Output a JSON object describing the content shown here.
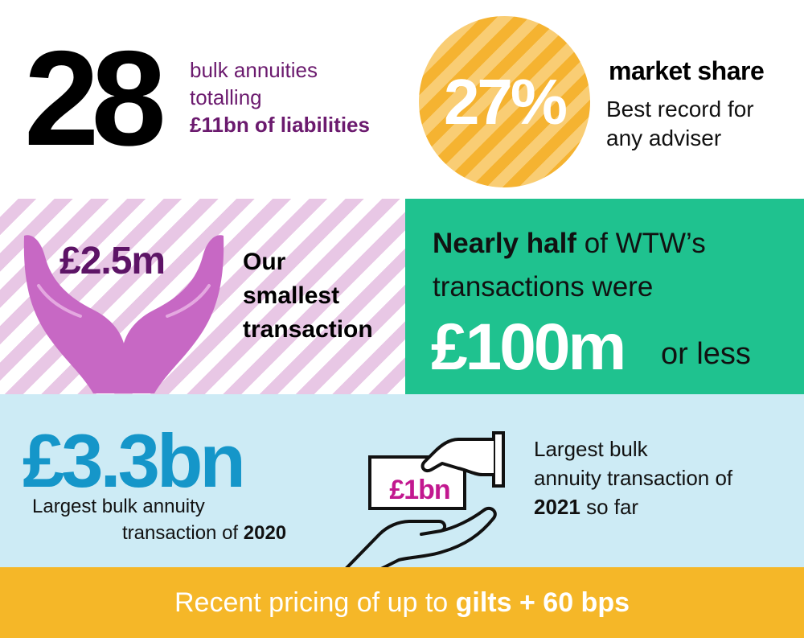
{
  "top": {
    "annuities_count": "28",
    "annuities_line1": "bulk annuities",
    "annuities_line2": "totalling",
    "annuities_line3": "£11bn of liabilities",
    "market_share_value": "27%",
    "market_share_title": "market share",
    "market_share_line1": "Best record for",
    "market_share_line2": "any adviser"
  },
  "middle": {
    "smallest_value": "£2.5m",
    "smallest_line1": "Our",
    "smallest_line2": "smallest",
    "smallest_line3": "transaction",
    "nearly_half_bold": "Nearly half",
    "nearly_half_rest": " of WTW’s",
    "nearly_half_line2": "transactions were",
    "nearly_half_value": "£100m",
    "nearly_half_suffix": "or less"
  },
  "lower": {
    "largest_2020_value": "£3.3bn",
    "largest_2020_line1": "Largest bulk annuity",
    "largest_2020_line2": "transaction of ",
    "largest_2020_year": "2020",
    "note_value": "£1bn",
    "largest_2021_line1": "Largest bulk",
    "largest_2021_line2": "annuity transaction of",
    "largest_2021_year": "2021",
    "largest_2021_suffix": " so far"
  },
  "bottom": {
    "pricing_prefix": "Recent pricing of up to ",
    "pricing_bold": "gilts + 60 bps"
  },
  "colors": {
    "purple": "#6b1a6e",
    "orange": "#f5b331",
    "pink_stripe": "#e8c7e5",
    "green": "#1fc28f",
    "light_blue": "#cdebf5",
    "blue": "#1596c9",
    "yellow_bar": "#f5b728",
    "magenta": "#c2188f"
  },
  "icons": [
    "open-hands-icon",
    "hand-giving-banknote-icon"
  ]
}
